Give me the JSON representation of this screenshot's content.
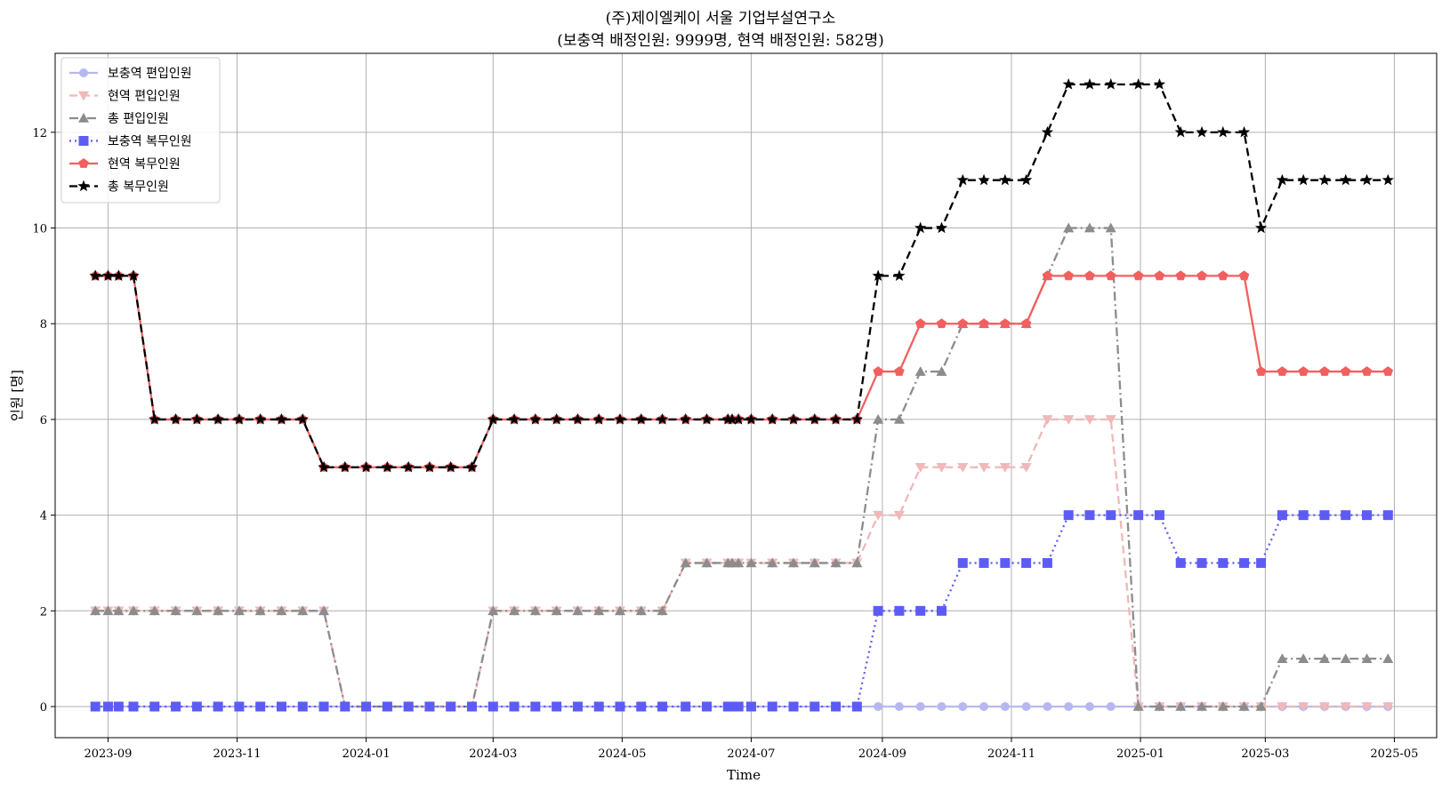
{
  "chart_data": {
    "type": "line",
    "title": "(주)제이엘케이 서울 기업부설연구소",
    "subtitle": "(보충역 배정인원: 9999명, 현역 배정인원: 582명)",
    "xlabel": "Time",
    "ylabel": "인원 [명]",
    "xlim": [
      "2023-08-07",
      "2025-05-21"
    ],
    "ylim": [
      -0.65,
      13.65
    ],
    "grid": true,
    "legend_position": "upper-left",
    "x_ticks": [
      "2023-09-01",
      "2023-11-01",
      "2024-01-01",
      "2024-03-01",
      "2024-05-01",
      "2024-07-01",
      "2024-09-01",
      "2024-11-01",
      "2025-01-01",
      "2025-03-01",
      "2025-05-01"
    ],
    "x_tick_labels": [
      "2023-09",
      "2023-11",
      "2024-01",
      "2024-03",
      "2024-05",
      "2024-07",
      "2024-09",
      "2024-11",
      "2025-01",
      "2025-03",
      "2025-05"
    ],
    "y_ticks": [
      0,
      2,
      4,
      6,
      8,
      10,
      12
    ],
    "x": [
      "2023-08-26",
      "2023-09-01",
      "2023-09-06",
      "2023-09-13",
      "2023-09-23",
      "2023-10-03",
      "2023-10-13",
      "2023-10-23",
      "2023-11-02",
      "2023-11-12",
      "2023-11-22",
      "2023-12-02",
      "2023-12-12",
      "2023-12-22",
      "2024-01-01",
      "2024-01-11",
      "2024-01-21",
      "2024-01-31",
      "2024-02-10",
      "2024-02-20",
      "2024-03-01",
      "2024-03-11",
      "2024-03-21",
      "2024-03-31",
      "2024-04-10",
      "2024-04-20",
      "2024-04-30",
      "2024-05-10",
      "2024-05-20",
      "2024-05-31",
      "2024-06-10",
      "2024-06-20",
      "2024-06-22",
      "2024-06-25",
      "2024-07-01",
      "2024-07-11",
      "2024-07-21",
      "2024-07-31",
      "2024-08-10",
      "2024-08-20",
      "2024-08-30",
      "2024-09-09",
      "2024-09-19",
      "2024-09-29",
      "2024-10-09",
      "2024-10-19",
      "2024-10-29",
      "2024-11-08",
      "2024-11-18",
      "2024-11-28",
      "2024-12-08",
      "2024-12-18",
      "2024-12-31",
      "2025-01-10",
      "2025-01-20",
      "2025-01-30",
      "2025-02-09",
      "2025-02-19",
      "2025-02-27",
      "2025-03-09",
      "2025-03-19",
      "2025-03-29",
      "2025-04-08",
      "2025-04-18",
      "2025-04-28"
    ],
    "series": [
      {
        "name": "보충역 편입인원",
        "color": "#b8b8f0",
        "dash": "solid",
        "marker": "circle",
        "values": [
          0,
          0,
          0,
          0,
          0,
          0,
          0,
          0,
          0,
          0,
          0,
          0,
          0,
          0,
          0,
          0,
          0,
          0,
          0,
          0,
          0,
          0,
          0,
          0,
          0,
          0,
          0,
          0,
          0,
          0,
          0,
          0,
          0,
          0,
          0,
          0,
          0,
          0,
          0,
          0,
          0,
          0,
          0,
          0,
          0,
          0,
          0,
          0,
          0,
          0,
          0,
          0,
          0,
          0,
          0,
          0,
          0,
          0,
          0,
          0,
          0,
          0,
          0,
          0,
          0
        ]
      },
      {
        "name": "현역 편입인원",
        "color": "#f0b8b8",
        "dash": "dashed",
        "marker": "triangle-down",
        "values": [
          2,
          2,
          2,
          2,
          2,
          2,
          2,
          2,
          2,
          2,
          2,
          2,
          2,
          0,
          0,
          0,
          0,
          0,
          0,
          0,
          2,
          2,
          2,
          2,
          2,
          2,
          2,
          2,
          2,
          3,
          3,
          3,
          3,
          3,
          3,
          3,
          3,
          3,
          3,
          3,
          4,
          4,
          5,
          5,
          5,
          5,
          5,
          5,
          6,
          6,
          6,
          6,
          0,
          0,
          0,
          0,
          0,
          0,
          0,
          0,
          0,
          0,
          0,
          0,
          0
        ]
      },
      {
        "name": "총 편입인원",
        "color": "#8c8c8c",
        "dash": "dashdot",
        "marker": "triangle-up",
        "values": [
          2,
          2,
          2,
          2,
          2,
          2,
          2,
          2,
          2,
          2,
          2,
          2,
          2,
          0,
          0,
          0,
          0,
          0,
          0,
          0,
          2,
          2,
          2,
          2,
          2,
          2,
          2,
          2,
          2,
          3,
          3,
          3,
          3,
          3,
          3,
          3,
          3,
          3,
          3,
          3,
          6,
          6,
          7,
          7,
          8,
          8,
          8,
          8,
          9,
          10,
          10,
          10,
          0,
          0,
          0,
          0,
          0,
          0,
          0,
          1,
          1,
          1,
          1,
          1,
          1
        ]
      },
      {
        "name": "보충역 복무인원",
        "color": "#5c5cf5",
        "dash": "dotted",
        "marker": "square",
        "values": [
          0,
          0,
          0,
          0,
          0,
          0,
          0,
          0,
          0,
          0,
          0,
          0,
          0,
          0,
          0,
          0,
          0,
          0,
          0,
          0,
          0,
          0,
          0,
          0,
          0,
          0,
          0,
          0,
          0,
          0,
          0,
          0,
          0,
          0,
          0,
          0,
          0,
          0,
          0,
          0,
          2,
          2,
          2,
          2,
          3,
          3,
          3,
          3,
          3,
          4,
          4,
          4,
          4,
          4,
          3,
          3,
          3,
          3,
          3,
          4,
          4,
          4,
          4,
          4,
          4
        ]
      },
      {
        "name": "현역 복무인원",
        "color": "#f25f5f",
        "dash": "solid",
        "marker": "pentagon",
        "values": [
          9,
          9,
          9,
          9,
          6,
          6,
          6,
          6,
          6,
          6,
          6,
          6,
          5,
          5,
          5,
          5,
          5,
          5,
          5,
          5,
          6,
          6,
          6,
          6,
          6,
          6,
          6,
          6,
          6,
          6,
          6,
          6,
          6,
          6,
          6,
          6,
          6,
          6,
          6,
          6,
          7,
          7,
          8,
          8,
          8,
          8,
          8,
          8,
          9,
          9,
          9,
          9,
          9,
          9,
          9,
          9,
          9,
          9,
          7,
          7,
          7,
          7,
          7,
          7,
          7
        ]
      },
      {
        "name": "총 복무인원",
        "color": "#000000",
        "dash": "dashed",
        "marker": "star",
        "values": [
          9,
          9,
          9,
          9,
          6,
          6,
          6,
          6,
          6,
          6,
          6,
          6,
          5,
          5,
          5,
          5,
          5,
          5,
          5,
          5,
          6,
          6,
          6,
          6,
          6,
          6,
          6,
          6,
          6,
          6,
          6,
          6,
          6,
          6,
          6,
          6,
          6,
          6,
          6,
          6,
          9,
          9,
          10,
          10,
          11,
          11,
          11,
          11,
          12,
          13,
          13,
          13,
          13,
          13,
          12,
          12,
          12,
          12,
          10,
          11,
          11,
          11,
          11,
          11,
          11
        ]
      }
    ]
  }
}
